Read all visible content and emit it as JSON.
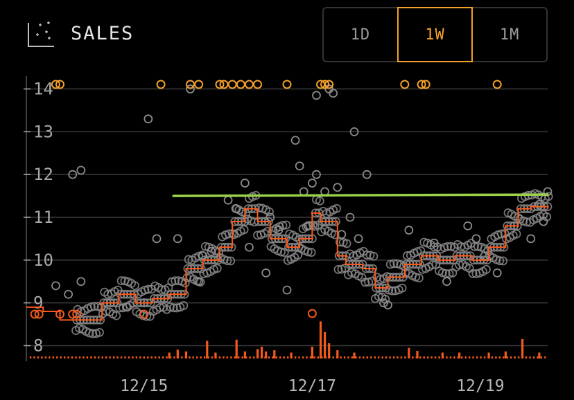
{
  "header": {
    "title": "SALES",
    "icon": "scatter-chart-icon"
  },
  "range_selector": {
    "options": [
      "1D",
      "1W",
      "1M"
    ],
    "selected": "1W"
  },
  "colors": {
    "background": "#000000",
    "scatter_point": "#8a8a8a",
    "high_outlier": "#f5a02c",
    "low_outlier": "#f35a1b",
    "median_line": "#ff5a1a",
    "volume_bar": "#f35a1b",
    "reference_line": "#9bd24a",
    "grid": "#3a3a3a"
  },
  "chart_data": {
    "type": "scatter",
    "title": "SALES",
    "x_unit": "days",
    "xlim": [
      13.6,
      19.8
    ],
    "ylim": [
      7.7,
      14.3
    ],
    "yticks": [
      "8",
      "9",
      "10",
      "11",
      "12",
      "13",
      "14"
    ],
    "xticks": [
      {
        "label": "12/15",
        "x": 15
      },
      {
        "label": "12/17",
        "x": 17
      },
      {
        "label": "12/19",
        "x": 19
      }
    ],
    "grid": true,
    "reference_line": {
      "y": 11.5,
      "x_start": 15.35,
      "x_end": 19.8
    },
    "median_line": [
      [
        13.6,
        8.9
      ],
      [
        13.8,
        8.8
      ],
      [
        14.0,
        8.6
      ],
      [
        14.3,
        8.6
      ],
      [
        14.5,
        9.0
      ],
      [
        14.7,
        9.2
      ],
      [
        14.9,
        9.0
      ],
      [
        15.1,
        9.1
      ],
      [
        15.3,
        9.2
      ],
      [
        15.5,
        9.8
      ],
      [
        15.7,
        10.0
      ],
      [
        15.9,
        10.3
      ],
      [
        16.05,
        10.9
      ],
      [
        16.2,
        11.2
      ],
      [
        16.35,
        10.9
      ],
      [
        16.5,
        10.5
      ],
      [
        16.7,
        10.3
      ],
      [
        16.85,
        10.5
      ],
      [
        17.0,
        11.1
      ],
      [
        17.1,
        10.9
      ],
      [
        17.3,
        10.1
      ],
      [
        17.4,
        9.9
      ],
      [
        17.6,
        9.8
      ],
      [
        17.75,
        9.35
      ],
      [
        17.9,
        9.6
      ],
      [
        18.1,
        9.9
      ],
      [
        18.3,
        10.1
      ],
      [
        18.5,
        10.0
      ],
      [
        18.7,
        10.1
      ],
      [
        18.9,
        10.0
      ],
      [
        19.1,
        10.3
      ],
      [
        19.3,
        10.8
      ],
      [
        19.45,
        11.2
      ],
      [
        19.6,
        11.25
      ],
      [
        19.8,
        11.2
      ]
    ],
    "scatter_points": [
      [
        14.15,
        12.0
      ],
      [
        14.25,
        12.1
      ],
      [
        13.95,
        9.4
      ],
      [
        14.25,
        9.5
      ],
      [
        14.1,
        9.2
      ],
      [
        14.6,
        9.0
      ],
      [
        14.8,
        8.9
      ],
      [
        15.0,
        9.0
      ],
      [
        15.15,
        10.5
      ],
      [
        15.05,
        13.3
      ],
      [
        15.4,
        10.5
      ],
      [
        15.55,
        14.0
      ],
      [
        15.8,
        10.2
      ],
      [
        16.0,
        11.4
      ],
      [
        16.2,
        11.8
      ],
      [
        16.1,
        11.2
      ],
      [
        16.25,
        10.3
      ],
      [
        16.45,
        9.7
      ],
      [
        16.7,
        9.3
      ],
      [
        16.8,
        12.8
      ],
      [
        16.85,
        12.2
      ],
      [
        16.9,
        11.6
      ],
      [
        17.0,
        11.8
      ],
      [
        17.05,
        12.0
      ],
      [
        17.15,
        11.6
      ],
      [
        17.2,
        14.0
      ],
      [
        17.25,
        13.9
      ],
      [
        17.05,
        13.85
      ],
      [
        17.3,
        11.7
      ],
      [
        17.45,
        11.0
      ],
      [
        17.55,
        10.5
      ],
      [
        17.5,
        13.0
      ],
      [
        17.65,
        12.0
      ],
      [
        17.85,
        9.0
      ],
      [
        17.9,
        8.95
      ],
      [
        18.15,
        10.7
      ],
      [
        18.45,
        10.4
      ],
      [
        18.6,
        9.5
      ],
      [
        18.85,
        10.8
      ],
      [
        18.95,
        10.5
      ],
      [
        19.05,
        10.1
      ],
      [
        19.2,
        9.7
      ],
      [
        19.4,
        10.8
      ],
      [
        19.6,
        10.5
      ],
      [
        19.75,
        10.9
      ],
      [
        19.8,
        11.6
      ],
      [
        19.7,
        11.3
      ],
      [
        15.65,
        9.5
      ],
      [
        15.7,
        10.1
      ],
      [
        16.5,
        11.0
      ],
      [
        16.6,
        10.7
      ],
      [
        16.95,
        10.8
      ],
      [
        17.35,
        10.6
      ]
    ],
    "high_outliers": [
      13.95,
      14.0,
      15.2,
      15.55,
      15.65,
      15.9,
      15.95,
      16.05,
      16.15,
      16.25,
      16.35,
      16.7,
      17.1,
      17.15,
      17.2,
      18.1,
      18.3,
      18.35,
      19.2
    ],
    "low_outliers": [
      13.7,
      13.75,
      14.0,
      14.15,
      14.2,
      15.0
    ],
    "volume_bars": [
      [
        15.3,
        1.0
      ],
      [
        15.4,
        1.5
      ],
      [
        15.5,
        1.2
      ],
      [
        15.75,
        3.0
      ],
      [
        15.85,
        1.0
      ],
      [
        16.1,
        3.2
      ],
      [
        16.2,
        1.2
      ],
      [
        16.35,
        1.6
      ],
      [
        16.4,
        2.0
      ],
      [
        16.45,
        1.2
      ],
      [
        16.55,
        1.4
      ],
      [
        16.75,
        1.0
      ],
      [
        17.0,
        2.0
      ],
      [
        17.1,
        6.3
      ],
      [
        17.15,
        4.5
      ],
      [
        17.2,
        2.6
      ],
      [
        17.3,
        1.4
      ],
      [
        17.5,
        1.0
      ],
      [
        18.15,
        1.8
      ],
      [
        18.25,
        1.3
      ],
      [
        18.55,
        1.0
      ],
      [
        18.75,
        1.0
      ],
      [
        19.1,
        1.0
      ],
      [
        19.3,
        1.2
      ],
      [
        19.5,
        3.3
      ],
      [
        19.7,
        1.0
      ]
    ]
  }
}
